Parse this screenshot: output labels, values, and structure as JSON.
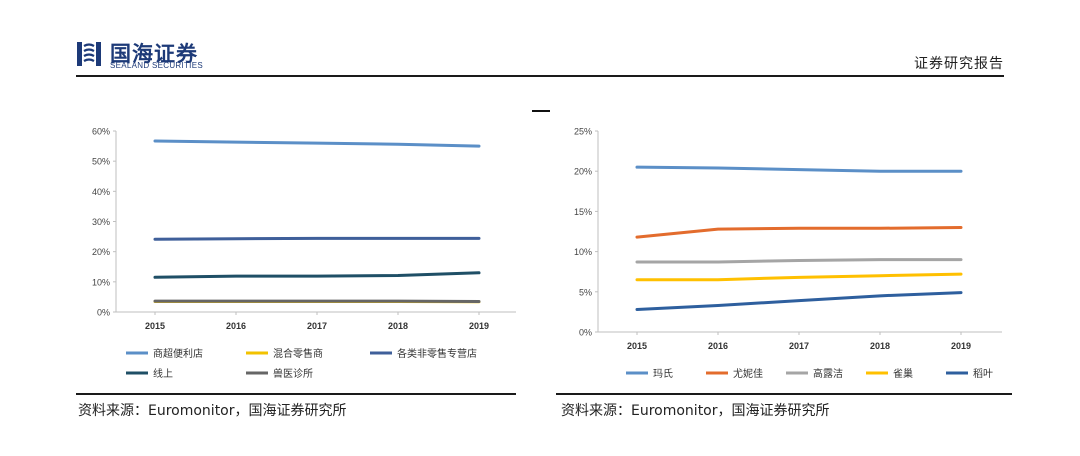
{
  "header": {
    "logo_cn": "国海证券",
    "logo_en": "SEALAND SECURITIES",
    "report_label": "证券研究报告"
  },
  "colors": {
    "brand": "#1d3a78",
    "rule": "#1a1a1a"
  },
  "sources": {
    "left": "资料来源：Euromonitor，国海证券研究所",
    "right": "资料来源：Euromonitor，国海证券研究所"
  },
  "chart_data": [
    {
      "type": "line",
      "title": "",
      "xlabel": "",
      "ylabel": "",
      "x": [
        "2015",
        "2016",
        "2017",
        "2018",
        "2019"
      ],
      "ylim": [
        0,
        60
      ],
      "yticks": [
        "0%",
        "10%",
        "20%",
        "30%",
        "40%",
        "50%",
        "60%"
      ],
      "grid": false,
      "legend": "bottom",
      "series": [
        {
          "name": "商超便利店",
          "color": "#5b8fc7",
          "values": [
            56.7,
            56.3,
            56.0,
            55.6,
            55.0
          ]
        },
        {
          "name": "混合零售商",
          "color": "#f2c200",
          "values": [
            3.5,
            3.5,
            3.5,
            3.5,
            3.4
          ]
        },
        {
          "name": "各类非零售专营店",
          "color": "#3f5f9a",
          "values": [
            24.1,
            24.3,
            24.4,
            24.4,
            24.4
          ]
        },
        {
          "name": "线上",
          "color": "#1f4f66",
          "values": [
            11.5,
            11.9,
            11.9,
            12.1,
            13.0
          ]
        },
        {
          "name": "兽医诊所",
          "color": "#666666",
          "values": [
            3.6,
            3.6,
            3.6,
            3.6,
            3.5
          ]
        }
      ]
    },
    {
      "type": "line",
      "title": "",
      "xlabel": "",
      "ylabel": "",
      "x": [
        "2015",
        "2016",
        "2017",
        "2018",
        "2019"
      ],
      "ylim": [
        0,
        25
      ],
      "yticks": [
        "0%",
        "5%",
        "10%",
        "15%",
        "20%",
        "25%"
      ],
      "grid": false,
      "legend": "bottom",
      "series": [
        {
          "name": "玛氏",
          "color": "#5b8fc7",
          "values": [
            20.5,
            20.4,
            20.2,
            20.0,
            20.0
          ]
        },
        {
          "name": "尤妮佳",
          "color": "#e36c2d",
          "values": [
            11.8,
            12.8,
            12.9,
            12.9,
            13.0
          ]
        },
        {
          "name": "高露洁",
          "color": "#a5a5a5",
          "values": [
            8.7,
            8.7,
            8.9,
            9.0,
            9.0
          ]
        },
        {
          "name": "雀巢",
          "color": "#ffc000",
          "values": [
            6.5,
            6.5,
            6.8,
            7.0,
            7.2
          ]
        },
        {
          "name": "稻叶",
          "color": "#2e5f9e",
          "values": [
            2.8,
            3.3,
            3.9,
            4.5,
            4.9
          ]
        }
      ]
    }
  ]
}
